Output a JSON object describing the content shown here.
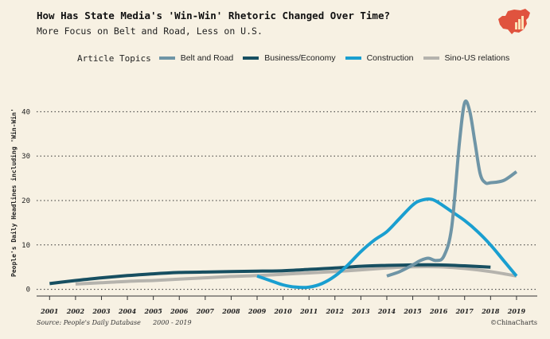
{
  "title": "How Has State Media's 'Win-Win' Rhetoric Changed Over Time?",
  "subtitle": "More Focus on Belt and Road, Less on U.S.",
  "legend_title": "Article Topics",
  "source": "Source: People's Daily Database      2000 - 2019",
  "credit": "©ChinaCharts",
  "chart_data": {
    "type": "line",
    "title": "How Has State Media's 'Win-Win' Rhetoric Changed Over Time?",
    "ylabel": "People's Daily Headlines including 'Win-Win'",
    "xlabel": "",
    "xlim": [
      2000.5,
      2019.8
    ],
    "ylim": [
      -1.5,
      44
    ],
    "grid": "horizontal dotted",
    "legend_position": "top",
    "x_ticks": [
      "2001",
      "2002",
      "2003",
      "2004",
      "2005",
      "2006",
      "2007",
      "2008",
      "2009",
      "2010",
      "2011",
      "2012",
      "2013",
      "2014",
      "2015",
      "2016",
      "2017",
      "2018",
      "2019"
    ],
    "y_ticks": [
      "0",
      "10",
      "20",
      "30",
      "40"
    ],
    "series": [
      {
        "name": "Belt and Road",
        "color": "#6f95a6",
        "x": [
          2014,
          2014.5,
          2015,
          2015.3,
          2015.6,
          2015.9,
          2016.2,
          2016.5,
          2016.8,
          2017,
          2017.2,
          2017.4,
          2017.6,
          2017.8,
          2018,
          2018.5,
          2019
        ],
        "y": [
          3,
          4,
          5.5,
          6.5,
          7,
          6.5,
          7.5,
          14,
          33,
          42,
          40,
          33,
          26,
          24,
          24,
          24.5,
          26.5
        ]
      },
      {
        "name": "Business/Economy",
        "color": "#174f61",
        "x": [
          2001,
          2002,
          2003,
          2004,
          2005,
          2006,
          2007,
          2008,
          2009,
          2010,
          2011,
          2012,
          2013,
          2014,
          2015,
          2016,
          2017,
          2018
        ],
        "y": [
          1.3,
          2,
          2.6,
          3.1,
          3.5,
          3.8,
          3.9,
          4,
          4.1,
          4.2,
          4.5,
          4.8,
          5.2,
          5.4,
          5.5,
          5.5,
          5.3,
          5
        ]
      },
      {
        "name": "Construction",
        "color": "#1a9fd0",
        "x": [
          2009,
          2009.5,
          2010,
          2010.5,
          2011,
          2011.5,
          2012,
          2012.5,
          2013,
          2013.5,
          2014,
          2014.5,
          2015,
          2015.3,
          2015.7,
          2016,
          2016.5,
          2017,
          2017.5,
          2018,
          2018.5,
          2019
        ],
        "y": [
          3,
          2,
          1,
          0.5,
          0.5,
          1.3,
          3,
          5.5,
          8.5,
          11,
          13,
          16,
          19,
          20,
          20.3,
          19.5,
          17.5,
          15.5,
          13,
          10,
          6.5,
          3
        ]
      },
      {
        "name": "Sino-US relations",
        "color": "#b5b3ad",
        "x": [
          2002,
          2003,
          2004,
          2005,
          2006,
          2007,
          2008,
          2009,
          2010,
          2011,
          2012,
          2013,
          2014,
          2015,
          2016,
          2017,
          2018,
          2019
        ],
        "y": [
          1.2,
          1.5,
          1.8,
          2,
          2.3,
          2.6,
          2.9,
          3.1,
          3.4,
          3.7,
          4,
          4.4,
          4.8,
          5.1,
          5.1,
          4.7,
          4,
          3
        ]
      }
    ]
  }
}
